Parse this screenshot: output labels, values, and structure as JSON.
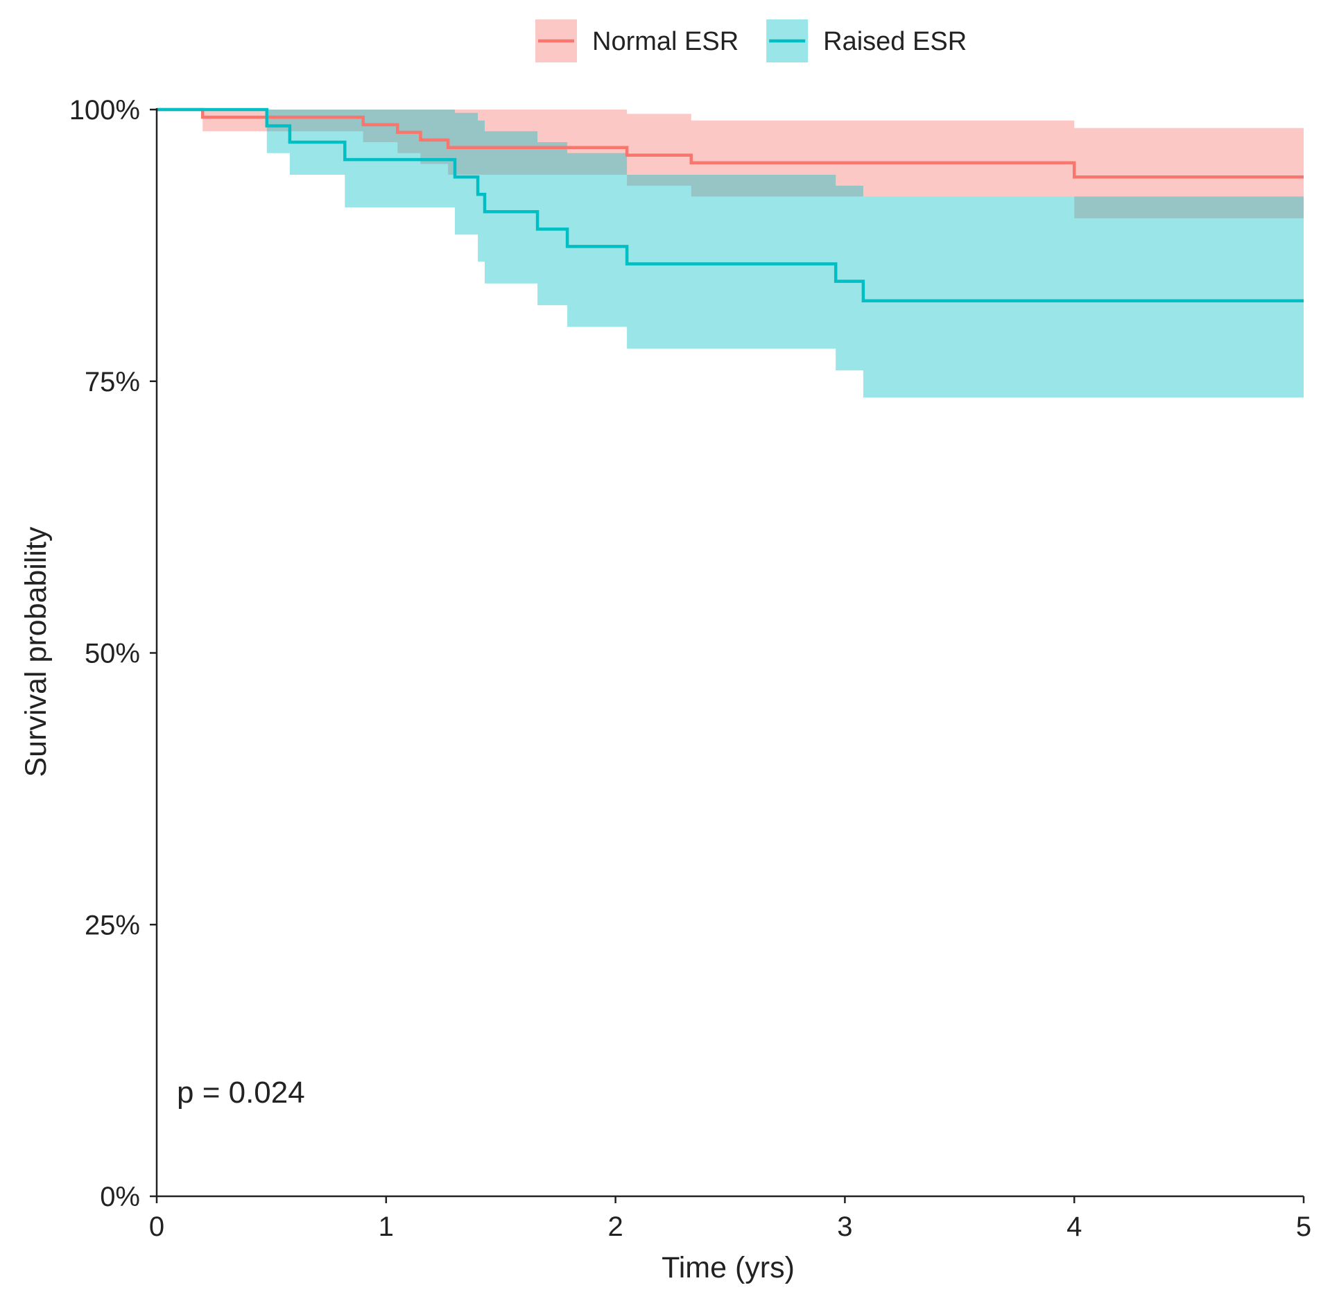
{
  "chart_data": {
    "type": "line",
    "subtype": "kaplan-meier step",
    "title": "",
    "xlabel": "Time (yrs)",
    "ylabel": "Survival probability",
    "xlim": [
      0,
      5
    ],
    "ylim": [
      0,
      1
    ],
    "x_ticks": [
      0,
      1,
      2,
      3,
      4,
      5
    ],
    "x_tick_labels": [
      "0",
      "1",
      "2",
      "3",
      "4",
      "5"
    ],
    "y_ticks": [
      0,
      0.25,
      0.5,
      0.75,
      1.0
    ],
    "y_tick_labels": [
      "0%",
      "25%",
      "50%",
      "75%",
      "100%"
    ],
    "grid": false,
    "legend_position": "top-center",
    "annotation": "p = 0.024",
    "series": [
      {
        "name": "Normal ESR",
        "color": "#F8766D",
        "band_color": "#F8766D",
        "steps": [
          [
            0,
            1.0
          ],
          [
            0.2,
            0.993
          ],
          [
            0.9,
            0.986
          ],
          [
            1.05,
            0.979
          ],
          [
            1.15,
            0.972
          ],
          [
            1.27,
            0.965
          ],
          [
            2.05,
            0.958
          ],
          [
            2.33,
            0.951
          ],
          [
            4.0,
            0.938
          ],
          [
            5.0,
            0.938
          ]
        ],
        "ci_lower": [
          [
            0,
            1.0
          ],
          [
            0.2,
            0.98
          ],
          [
            0.9,
            0.97
          ],
          [
            1.05,
            0.96
          ],
          [
            1.15,
            0.95
          ],
          [
            1.27,
            0.94
          ],
          [
            2.05,
            0.93
          ],
          [
            2.33,
            0.92
          ],
          [
            4.0,
            0.9
          ],
          [
            5.0,
            0.9
          ]
        ],
        "ci_upper": [
          [
            0,
            1.0
          ],
          [
            0.2,
            1.0
          ],
          [
            0.9,
            1.0
          ],
          [
            1.05,
            1.0
          ],
          [
            1.15,
            1.0
          ],
          [
            1.27,
            1.0
          ],
          [
            2.05,
            0.996
          ],
          [
            2.33,
            0.99
          ],
          [
            4.0,
            0.983
          ],
          [
            5.0,
            0.983
          ]
        ]
      },
      {
        "name": "Raised ESR",
        "color": "#00BFC4",
        "band_color": "#00BFC4",
        "steps": [
          [
            0,
            1.0
          ],
          [
            0.48,
            0.985
          ],
          [
            0.58,
            0.97
          ],
          [
            0.82,
            0.954
          ],
          [
            1.3,
            0.938
          ],
          [
            1.4,
            0.922
          ],
          [
            1.43,
            0.906
          ],
          [
            1.66,
            0.89
          ],
          [
            1.79,
            0.874
          ],
          [
            2.05,
            0.858
          ],
          [
            2.96,
            0.842
          ],
          [
            3.08,
            0.824
          ],
          [
            5.0,
            0.824
          ]
        ],
        "ci_lower": [
          [
            0,
            1.0
          ],
          [
            0.48,
            0.96
          ],
          [
            0.58,
            0.94
          ],
          [
            0.82,
            0.91
          ],
          [
            1.3,
            0.885
          ],
          [
            1.4,
            0.86
          ],
          [
            1.43,
            0.84
          ],
          [
            1.66,
            0.82
          ],
          [
            1.79,
            0.8
          ],
          [
            2.05,
            0.78
          ],
          [
            2.96,
            0.76
          ],
          [
            3.08,
            0.735
          ],
          [
            5.0,
            0.735
          ]
        ],
        "ci_upper": [
          [
            0,
            1.0
          ],
          [
            0.48,
            1.0
          ],
          [
            0.58,
            1.0
          ],
          [
            0.82,
            1.0
          ],
          [
            1.3,
            0.997
          ],
          [
            1.4,
            0.99
          ],
          [
            1.43,
            0.98
          ],
          [
            1.66,
            0.97
          ],
          [
            1.79,
            0.96
          ],
          [
            2.05,
            0.94
          ],
          [
            2.96,
            0.93
          ],
          [
            3.08,
            0.92
          ],
          [
            5.0,
            0.92
          ]
        ]
      }
    ]
  }
}
